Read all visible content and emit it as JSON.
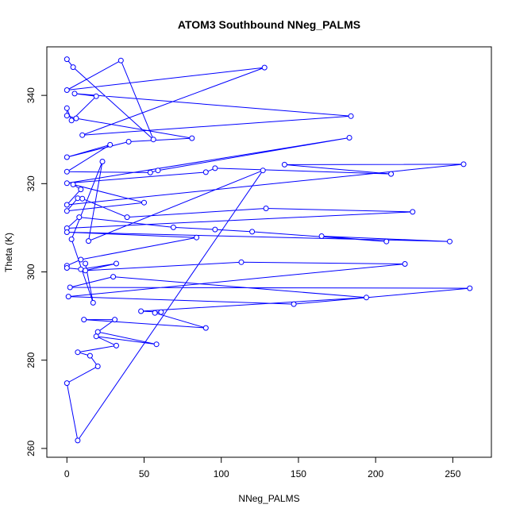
{
  "chart_data": {
    "type": "scatter",
    "title": "ATOM3 Southbound NNeg_PALMS",
    "xlabel": "NNeg_PALMS",
    "ylabel": "Theta (K)",
    "xlim": [
      -13,
      275
    ],
    "ylim": [
      258,
      351
    ],
    "xticks": [
      0,
      50,
      100,
      150,
      200,
      250
    ],
    "yticks": [
      260,
      280,
      300,
      320,
      340
    ],
    "grid": false,
    "series_color": "#0000ff",
    "marker": "open-circle",
    "connected": true,
    "points": [
      [
        0,
        348.2
      ],
      [
        4,
        346.4
      ],
      [
        56,
        330.0
      ],
      [
        35,
        347.9
      ],
      [
        0,
        341.2
      ],
      [
        128,
        346.3
      ],
      [
        10,
        331.0
      ],
      [
        184,
        335.3
      ],
      [
        5,
        340.4
      ],
      [
        19,
        339.8
      ],
      [
        3,
        334.3
      ],
      [
        0,
        337.1
      ],
      [
        0,
        335.4
      ],
      [
        6,
        334.8
      ],
      [
        81,
        330.3
      ],
      [
        40,
        329.5
      ],
      [
        0,
        326.0
      ],
      [
        28,
        328.8
      ],
      [
        0,
        322.7
      ],
      [
        54,
        322.5
      ],
      [
        59,
        323.0
      ],
      [
        183,
        330.4
      ],
      [
        0,
        320.1
      ],
      [
        90,
        322.6
      ],
      [
        96,
        323.5
      ],
      [
        210,
        322.2
      ],
      [
        141,
        324.3
      ],
      [
        257,
        324.4
      ],
      [
        0,
        315.2
      ],
      [
        9,
        318.7
      ],
      [
        4,
        319.8
      ],
      [
        50,
        315.7
      ],
      [
        0,
        313.8
      ],
      [
        7,
        316.7
      ],
      [
        10,
        316.6
      ],
      [
        39,
        312.4
      ],
      [
        129,
        314.4
      ],
      [
        224,
        313.6
      ],
      [
        0,
        309.9
      ],
      [
        8,
        312.4
      ],
      [
        69,
        310.1
      ],
      [
        96,
        309.6
      ],
      [
        120,
        309.1
      ],
      [
        207,
        306.9
      ],
      [
        165,
        308.1
      ],
      [
        248,
        306.9
      ],
      [
        0,
        309.0
      ],
      [
        84,
        307.8
      ],
      [
        9,
        302.8
      ],
      [
        0,
        301.4
      ],
      [
        0,
        300.9
      ],
      [
        9,
        300.6
      ],
      [
        32,
        301.9
      ],
      [
        12,
        300.3
      ],
      [
        113,
        302.2
      ],
      [
        219,
        301.8
      ],
      [
        1,
        294.4
      ],
      [
        147,
        292.7
      ],
      [
        261,
        296.3
      ],
      [
        2,
        296.5
      ],
      [
        30,
        298.9
      ],
      [
        194,
        294.2
      ],
      [
        48,
        291.1
      ],
      [
        61,
        290.9
      ],
      [
        57,
        290.7
      ],
      [
        90,
        287.3
      ],
      [
        11,
        289.2
      ],
      [
        31,
        289.2
      ],
      [
        20,
        286.4
      ],
      [
        58,
        283.6
      ],
      [
        19,
        285.4
      ],
      [
        32,
        283.3
      ],
      [
        7,
        281.8
      ],
      [
        15,
        281.0
      ],
      [
        20,
        278.6
      ],
      [
        0,
        274.8
      ],
      [
        7,
        261.8
      ],
      [
        127,
        323.0
      ],
      [
        14,
        307.0
      ],
      [
        23,
        325.0
      ],
      [
        3,
        307.4
      ],
      [
        17,
        293.0
      ],
      [
        12,
        301.9
      ]
    ]
  }
}
